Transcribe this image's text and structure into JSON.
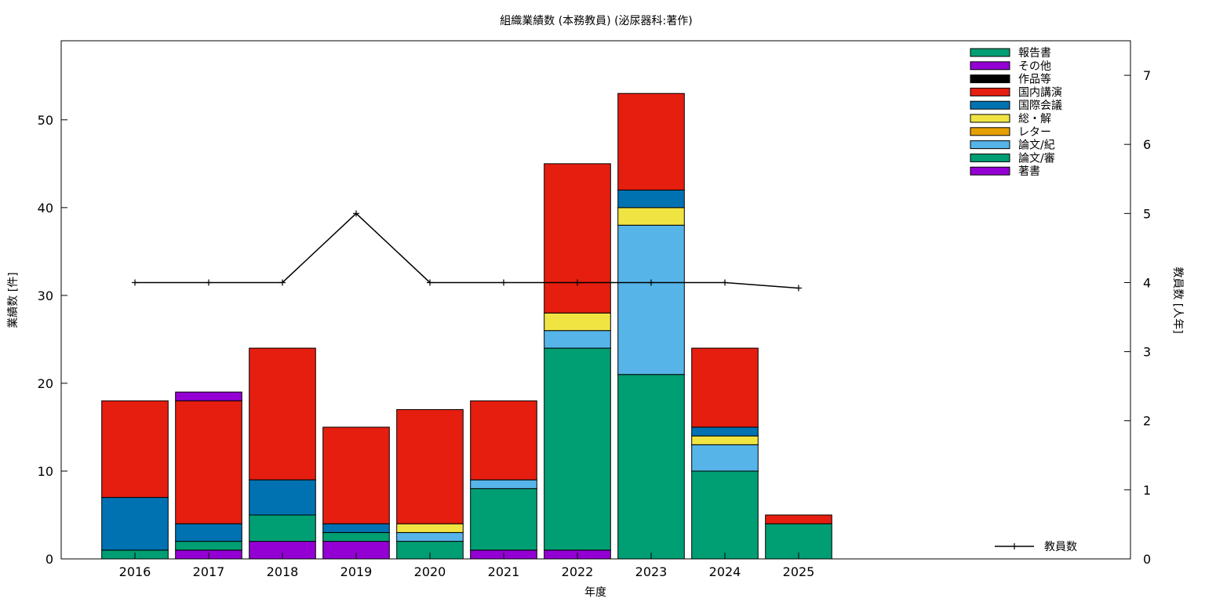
{
  "chart_data": {
    "type": "bar",
    "stacked": true,
    "title": "組織業績数 (本務教員) (泌尿器科:著作)",
    "xlabel": "年度",
    "ylabel": "業績数 [件]",
    "y2label": "教員数 [人年]",
    "ylim": [
      0,
      59
    ],
    "y2lim": [
      0,
      7.5
    ],
    "yticks": [
      0,
      10,
      20,
      30,
      40,
      50
    ],
    "y2ticks": [
      0,
      1,
      2,
      3,
      4,
      5,
      6,
      7
    ],
    "xlim": [
      2015,
      2029.5
    ],
    "grid": false,
    "legend_position": "top-right",
    "categories": [
      "2016",
      "2017",
      "2018",
      "2019",
      "2020",
      "2021",
      "2022",
      "2023",
      "2024",
      "2025"
    ],
    "series": [
      {
        "name": "著書",
        "color": "#9400d3",
        "values": [
          0,
          1,
          2,
          2,
          0,
          1,
          1,
          0,
          0,
          0
        ]
      },
      {
        "name": "論文/審",
        "color": "#009e73",
        "values": [
          1,
          1,
          3,
          1,
          2,
          7,
          23,
          21,
          10,
          4
        ]
      },
      {
        "name": "論文/紀",
        "color": "#56b4e9",
        "values": [
          0,
          0,
          0,
          0,
          1,
          1,
          2,
          17,
          3,
          0
        ]
      },
      {
        "name": "レター",
        "color": "#e69f00",
        "values": [
          0,
          0,
          0,
          0,
          0,
          0,
          0,
          0,
          0,
          0
        ]
      },
      {
        "name": "総・解",
        "color": "#f0e442",
        "values": [
          0,
          0,
          0,
          0,
          1,
          0,
          2,
          2,
          1,
          0
        ]
      },
      {
        "name": "国際会議",
        "color": "#0072b2",
        "values": [
          6,
          2,
          4,
          1,
          0,
          0,
          0,
          2,
          1,
          0
        ]
      },
      {
        "name": "国内講演",
        "color": "#e51e10",
        "values": [
          11,
          14,
          15,
          11,
          13,
          9,
          17,
          11,
          9,
          1
        ]
      },
      {
        "name": "作品等",
        "color": "#000000",
        "values": [
          0,
          0,
          0,
          0,
          0,
          0,
          0,
          0,
          0,
          0
        ]
      },
      {
        "name": "その他",
        "color": "#9400d3",
        "values": [
          0,
          1,
          0,
          0,
          0,
          0,
          0,
          0,
          0,
          0
        ]
      },
      {
        "name": "報告書",
        "color": "#009e73",
        "values": [
          0,
          0,
          0,
          0,
          0,
          0,
          0,
          0,
          0,
          0
        ]
      }
    ],
    "line_series": {
      "name": "教員数",
      "axis": "y2",
      "color": "#000000",
      "values": [
        4,
        4,
        4,
        5,
        4,
        4,
        4,
        4,
        4,
        3.92
      ]
    }
  }
}
